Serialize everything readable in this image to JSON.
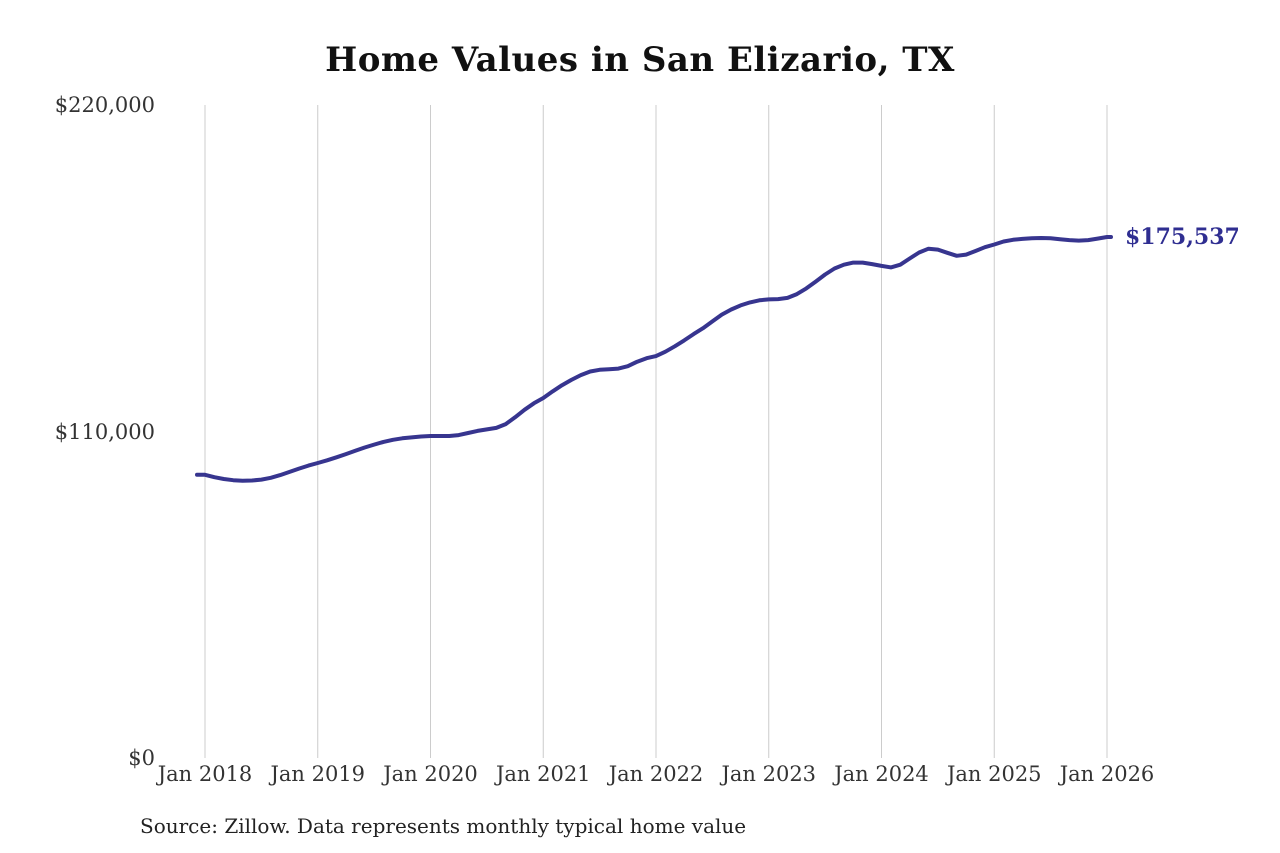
{
  "chart_data": {
    "type": "line",
    "title": "Home Values in San Elizario, TX",
    "source_note": "Source: Zillow. Data represents monthly typical home value",
    "frequency": "monthly",
    "x_start": "Jan 2018",
    "x_end": "Jan 2026",
    "x_tick_labels": [
      "Jan 2018",
      "Jan 2019",
      "Jan 2020",
      "Jan 2021",
      "Jan 2022",
      "Jan 2023",
      "Jan 2024",
      "Jan 2025",
      "Jan 2026"
    ],
    "y_ticks": [
      {
        "value": 0,
        "label": "$0"
      },
      {
        "value": 110000,
        "label": "$110,000"
      },
      {
        "value": 220000,
        "label": "$220,000"
      }
    ],
    "ylim": [
      0,
      220000
    ],
    "grid": "vertical-only",
    "legend": "none",
    "line_color": "#37358f",
    "gridline_color": "#cccccc",
    "last_value": 175537,
    "last_value_label": "$175,537",
    "x": [
      "2018-01",
      "2018-02",
      "2018-03",
      "2018-04",
      "2018-05",
      "2018-06",
      "2018-07",
      "2018-08",
      "2018-09",
      "2018-10",
      "2018-11",
      "2018-12",
      "2019-01",
      "2019-02",
      "2019-03",
      "2019-04",
      "2019-05",
      "2019-06",
      "2019-07",
      "2019-08",
      "2019-09",
      "2019-10",
      "2019-11",
      "2019-12",
      "2020-01",
      "2020-02",
      "2020-03",
      "2020-04",
      "2020-05",
      "2020-06",
      "2020-07",
      "2020-08",
      "2020-09",
      "2020-10",
      "2020-11",
      "2020-12",
      "2021-01",
      "2021-02",
      "2021-03",
      "2021-04",
      "2021-05",
      "2021-06",
      "2021-07",
      "2021-08",
      "2021-09",
      "2021-10",
      "2021-11",
      "2021-12",
      "2022-01",
      "2022-02",
      "2022-03",
      "2022-04",
      "2022-05",
      "2022-06",
      "2022-07",
      "2022-08",
      "2022-09",
      "2022-10",
      "2022-11",
      "2022-12",
      "2023-01",
      "2023-02",
      "2023-03",
      "2023-04",
      "2023-05",
      "2023-06",
      "2023-07",
      "2023-08",
      "2023-09",
      "2023-10",
      "2023-11",
      "2023-12",
      "2024-01",
      "2024-02",
      "2024-03",
      "2024-04",
      "2024-05",
      "2024-06",
      "2024-07",
      "2024-08",
      "2024-09",
      "2024-10",
      "2024-11",
      "2024-12",
      "2025-01",
      "2025-02",
      "2025-03",
      "2025-04",
      "2025-05",
      "2025-06",
      "2025-07",
      "2025-08",
      "2025-09",
      "2025-10",
      "2025-11",
      "2025-12",
      "2026-01"
    ],
    "values": [
      95400,
      94600,
      94000,
      93600,
      93400,
      93500,
      93800,
      94400,
      95300,
      96400,
      97500,
      98500,
      99400,
      100300,
      101300,
      102400,
      103500,
      104600,
      105600,
      106500,
      107200,
      107700,
      108000,
      108300,
      108500,
      108500,
      108500,
      108800,
      109500,
      110200,
      110700,
      111200,
      112500,
      114800,
      117300,
      119500,
      121300,
      123500,
      125600,
      127400,
      129000,
      130200,
      130800,
      131000,
      131200,
      132000,
      133500,
      134700,
      135400,
      136900,
      138700,
      140700,
      142800,
      144800,
      147100,
      149400,
      151100,
      152500,
      153500,
      154200,
      154500,
      154600,
      155000,
      156300,
      158200,
      160500,
      162900,
      164900,
      166200,
      166900,
      166900,
      166400,
      165800,
      165300,
      166200,
      168300,
      170300,
      171600,
      171300,
      170200,
      169200,
      169600,
      170800,
      172100,
      173000,
      174000,
      174600,
      174900,
      175100,
      175200,
      175100,
      174800,
      174500,
      174300,
      174500,
      175000,
      175537
    ]
  }
}
